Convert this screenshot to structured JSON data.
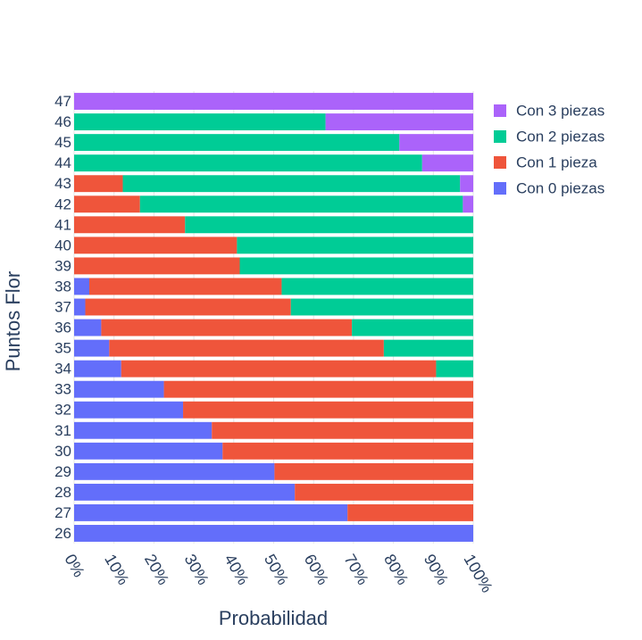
{
  "chart_data": {
    "type": "bar",
    "orientation": "horizontal",
    "barmode": "stack",
    "categories": [
      "26",
      "27",
      "28",
      "29",
      "30",
      "31",
      "32",
      "33",
      "34",
      "35",
      "36",
      "37",
      "38",
      "39",
      "40",
      "41",
      "42",
      "43",
      "44",
      "45",
      "46",
      "47"
    ],
    "series": [
      {
        "name": "Con 0 piezas",
        "color": "#636efa",
        "values": [
          1.0,
          0.685,
          0.553,
          0.502,
          0.372,
          0.345,
          0.273,
          0.225,
          0.118,
          0.088,
          0.068,
          0.028,
          0.038,
          0,
          0,
          0,
          0,
          0,
          0,
          0,
          0,
          0
        ]
      },
      {
        "name": "Con 1 pieza",
        "color": "#ef553b",
        "values": [
          0,
          0.315,
          0.447,
          0.498,
          0.628,
          0.655,
          0.727,
          0.775,
          0.789,
          0.688,
          0.628,
          0.515,
          0.482,
          0.415,
          0.408,
          0.278,
          0.165,
          0.122,
          0,
          0,
          0,
          0
        ]
      },
      {
        "name": "Con 2 piezas",
        "color": "#00cc96",
        "values": [
          0,
          0,
          0,
          0,
          0,
          0,
          0,
          0,
          0.093,
          0.224,
          0.304,
          0.457,
          0.48,
          0.585,
          0.592,
          0.722,
          0.809,
          0.845,
          0.872,
          0.815,
          0.63,
          0
        ]
      },
      {
        "name": "Con 3 piezas",
        "color": "#ab63fa",
        "values": [
          0,
          0,
          0,
          0,
          0,
          0,
          0,
          0,
          0,
          0,
          0,
          0,
          0,
          0,
          0,
          0,
          0.026,
          0.033,
          0.128,
          0.185,
          0.37,
          1.0
        ]
      }
    ],
    "xlabel": "Probabilidad",
    "ylabel": "Puntos Flor",
    "xlim": [
      0,
      1
    ],
    "xticks": [
      "0%",
      "10%",
      "20%",
      "30%",
      "40%",
      "50%",
      "60%",
      "70%",
      "80%",
      "90%",
      "100%"
    ],
    "grid": true,
    "legend_placement": "top-right",
    "legend_order": [
      "Con 3 piezas",
      "Con 2 piezas",
      "Con 1 pieza",
      "Con 0 piezas"
    ],
    "tick_color": "#2a3f5f",
    "grid_color": "#e5e5e5"
  }
}
